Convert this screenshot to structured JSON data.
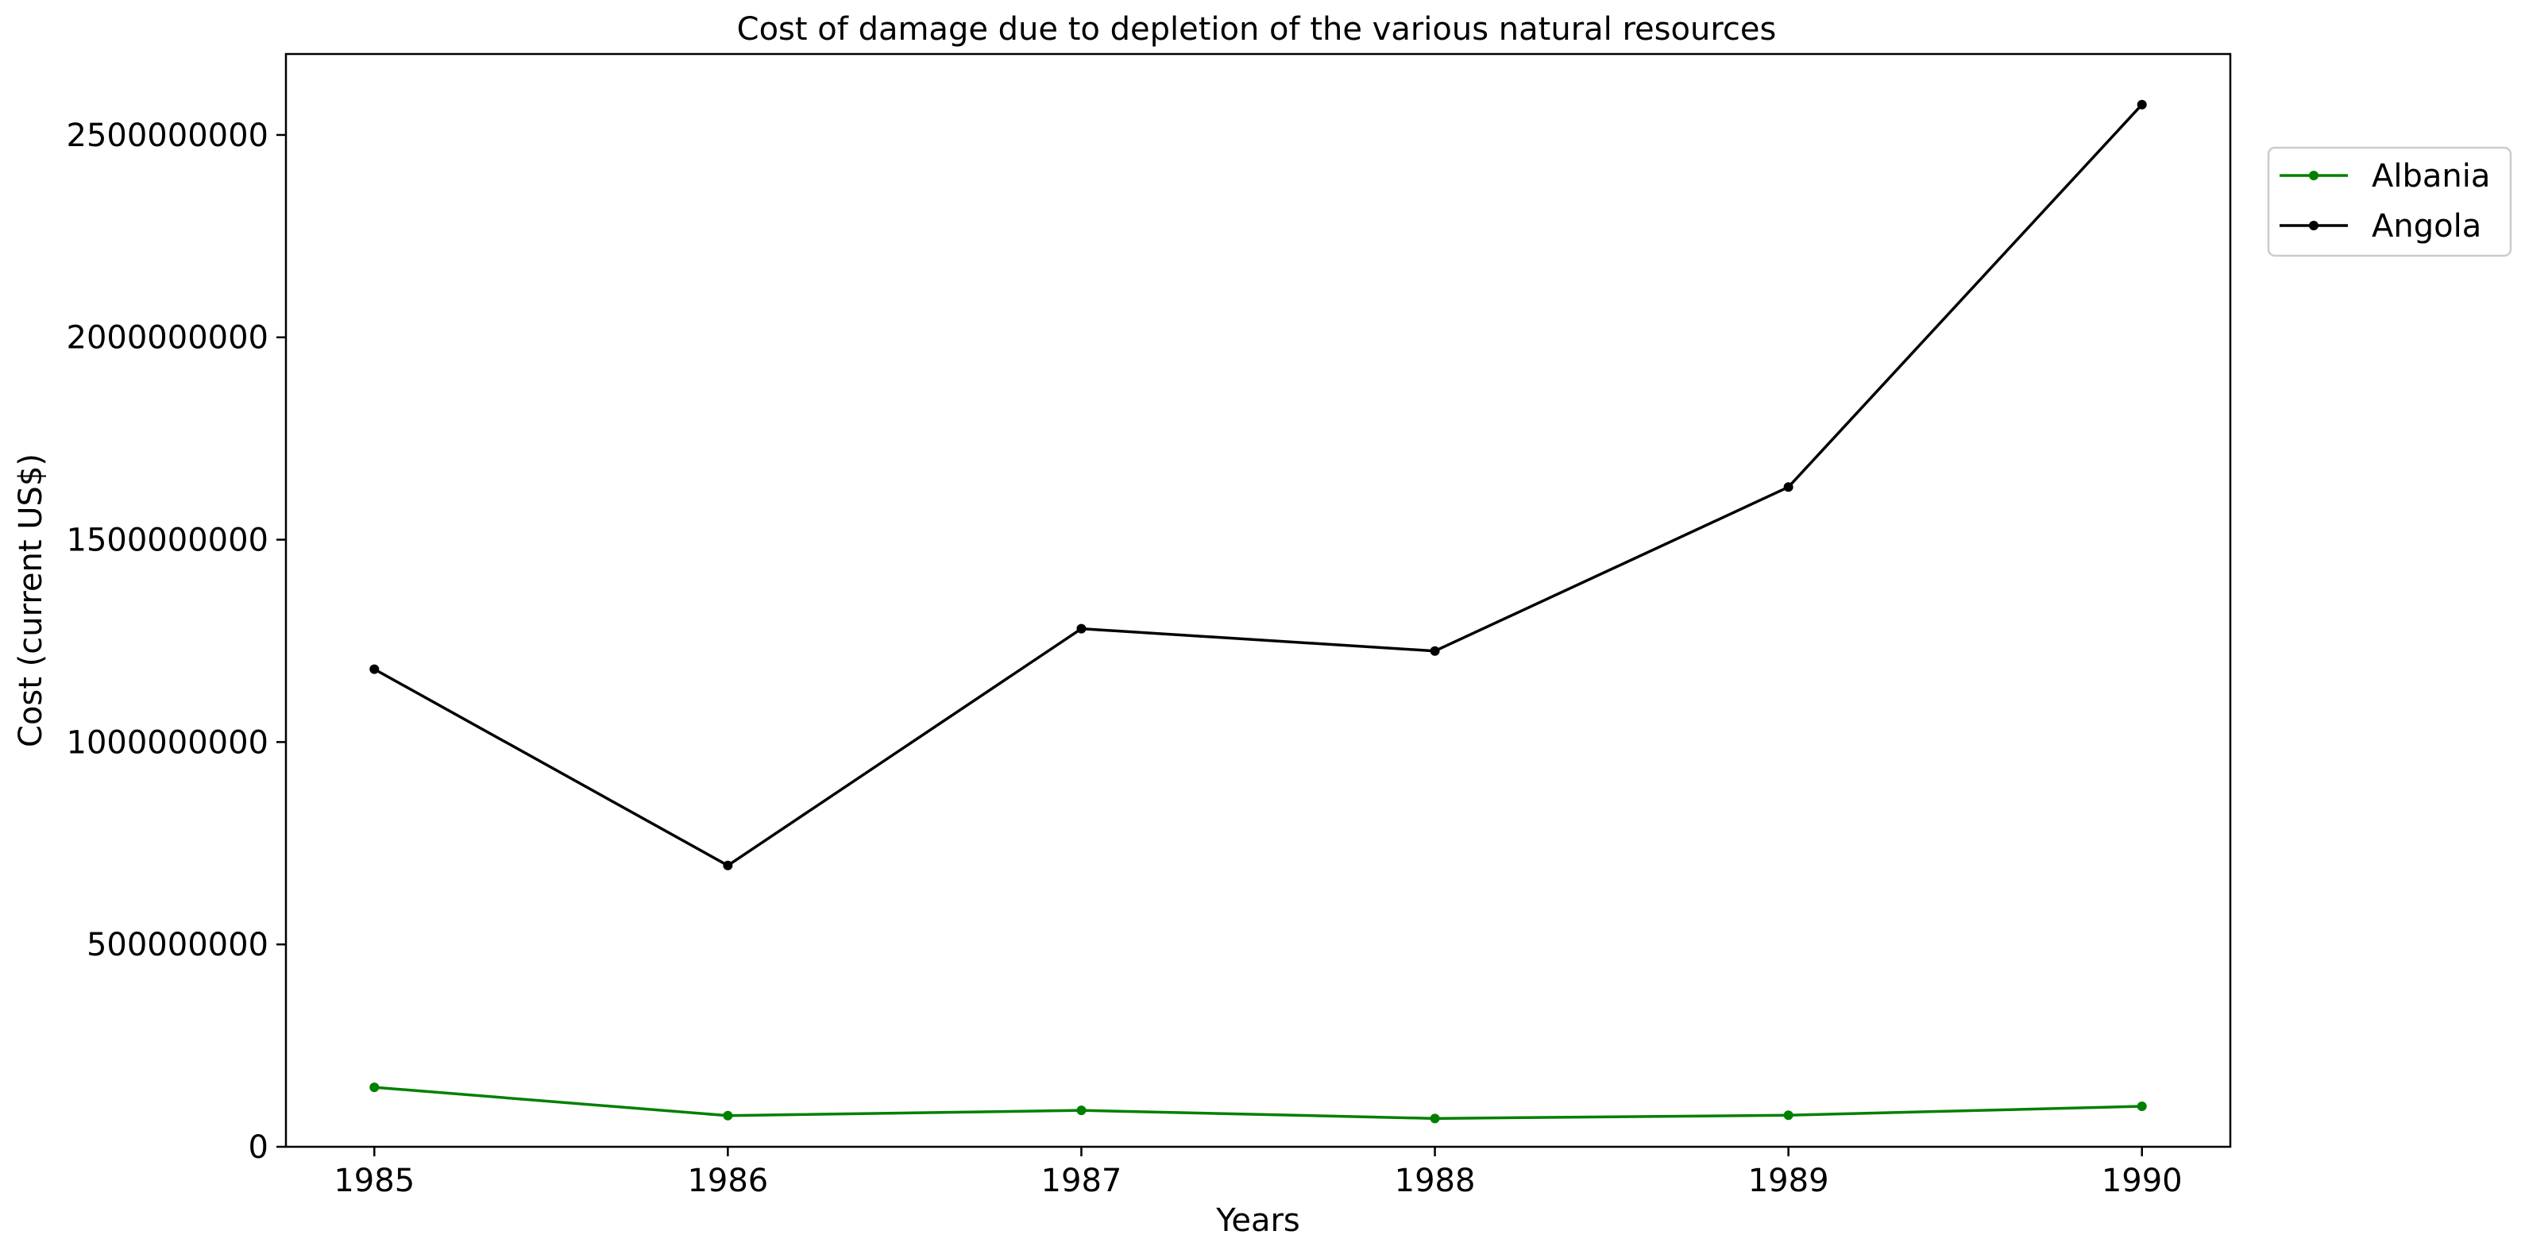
{
  "chart_data": {
    "type": "line",
    "title": "Cost of damage due to depletion of the various natural resources",
    "xlabel": "Years",
    "ylabel": "Cost (current US$)",
    "x": [
      "1985",
      "1986",
      "1987",
      "1988",
      "1989",
      "1990"
    ],
    "xlim": [
      1984.75,
      1990.25
    ],
    "ylim": [
      0,
      2700000000
    ],
    "yticks": [
      0,
      500000000,
      1000000000,
      1500000000,
      2000000000,
      2500000000
    ],
    "ytick_labels": [
      "0",
      "500000000",
      "1000000000",
      "1500000000",
      "2000000000",
      "2500000000"
    ],
    "grid": false,
    "legend_position": "upper right, outside plot area",
    "series": [
      {
        "name": "Albania",
        "color": "#008000",
        "marker": "dot",
        "values": [
          147000000,
          77000000,
          90000000,
          70000000,
          78000000,
          100000000
        ]
      },
      {
        "name": "Angola",
        "color": "#000000",
        "marker": "dot",
        "values": [
          1180000000,
          695000000,
          1280000000,
          1225000000,
          1630000000,
          2575000000
        ]
      }
    ]
  }
}
